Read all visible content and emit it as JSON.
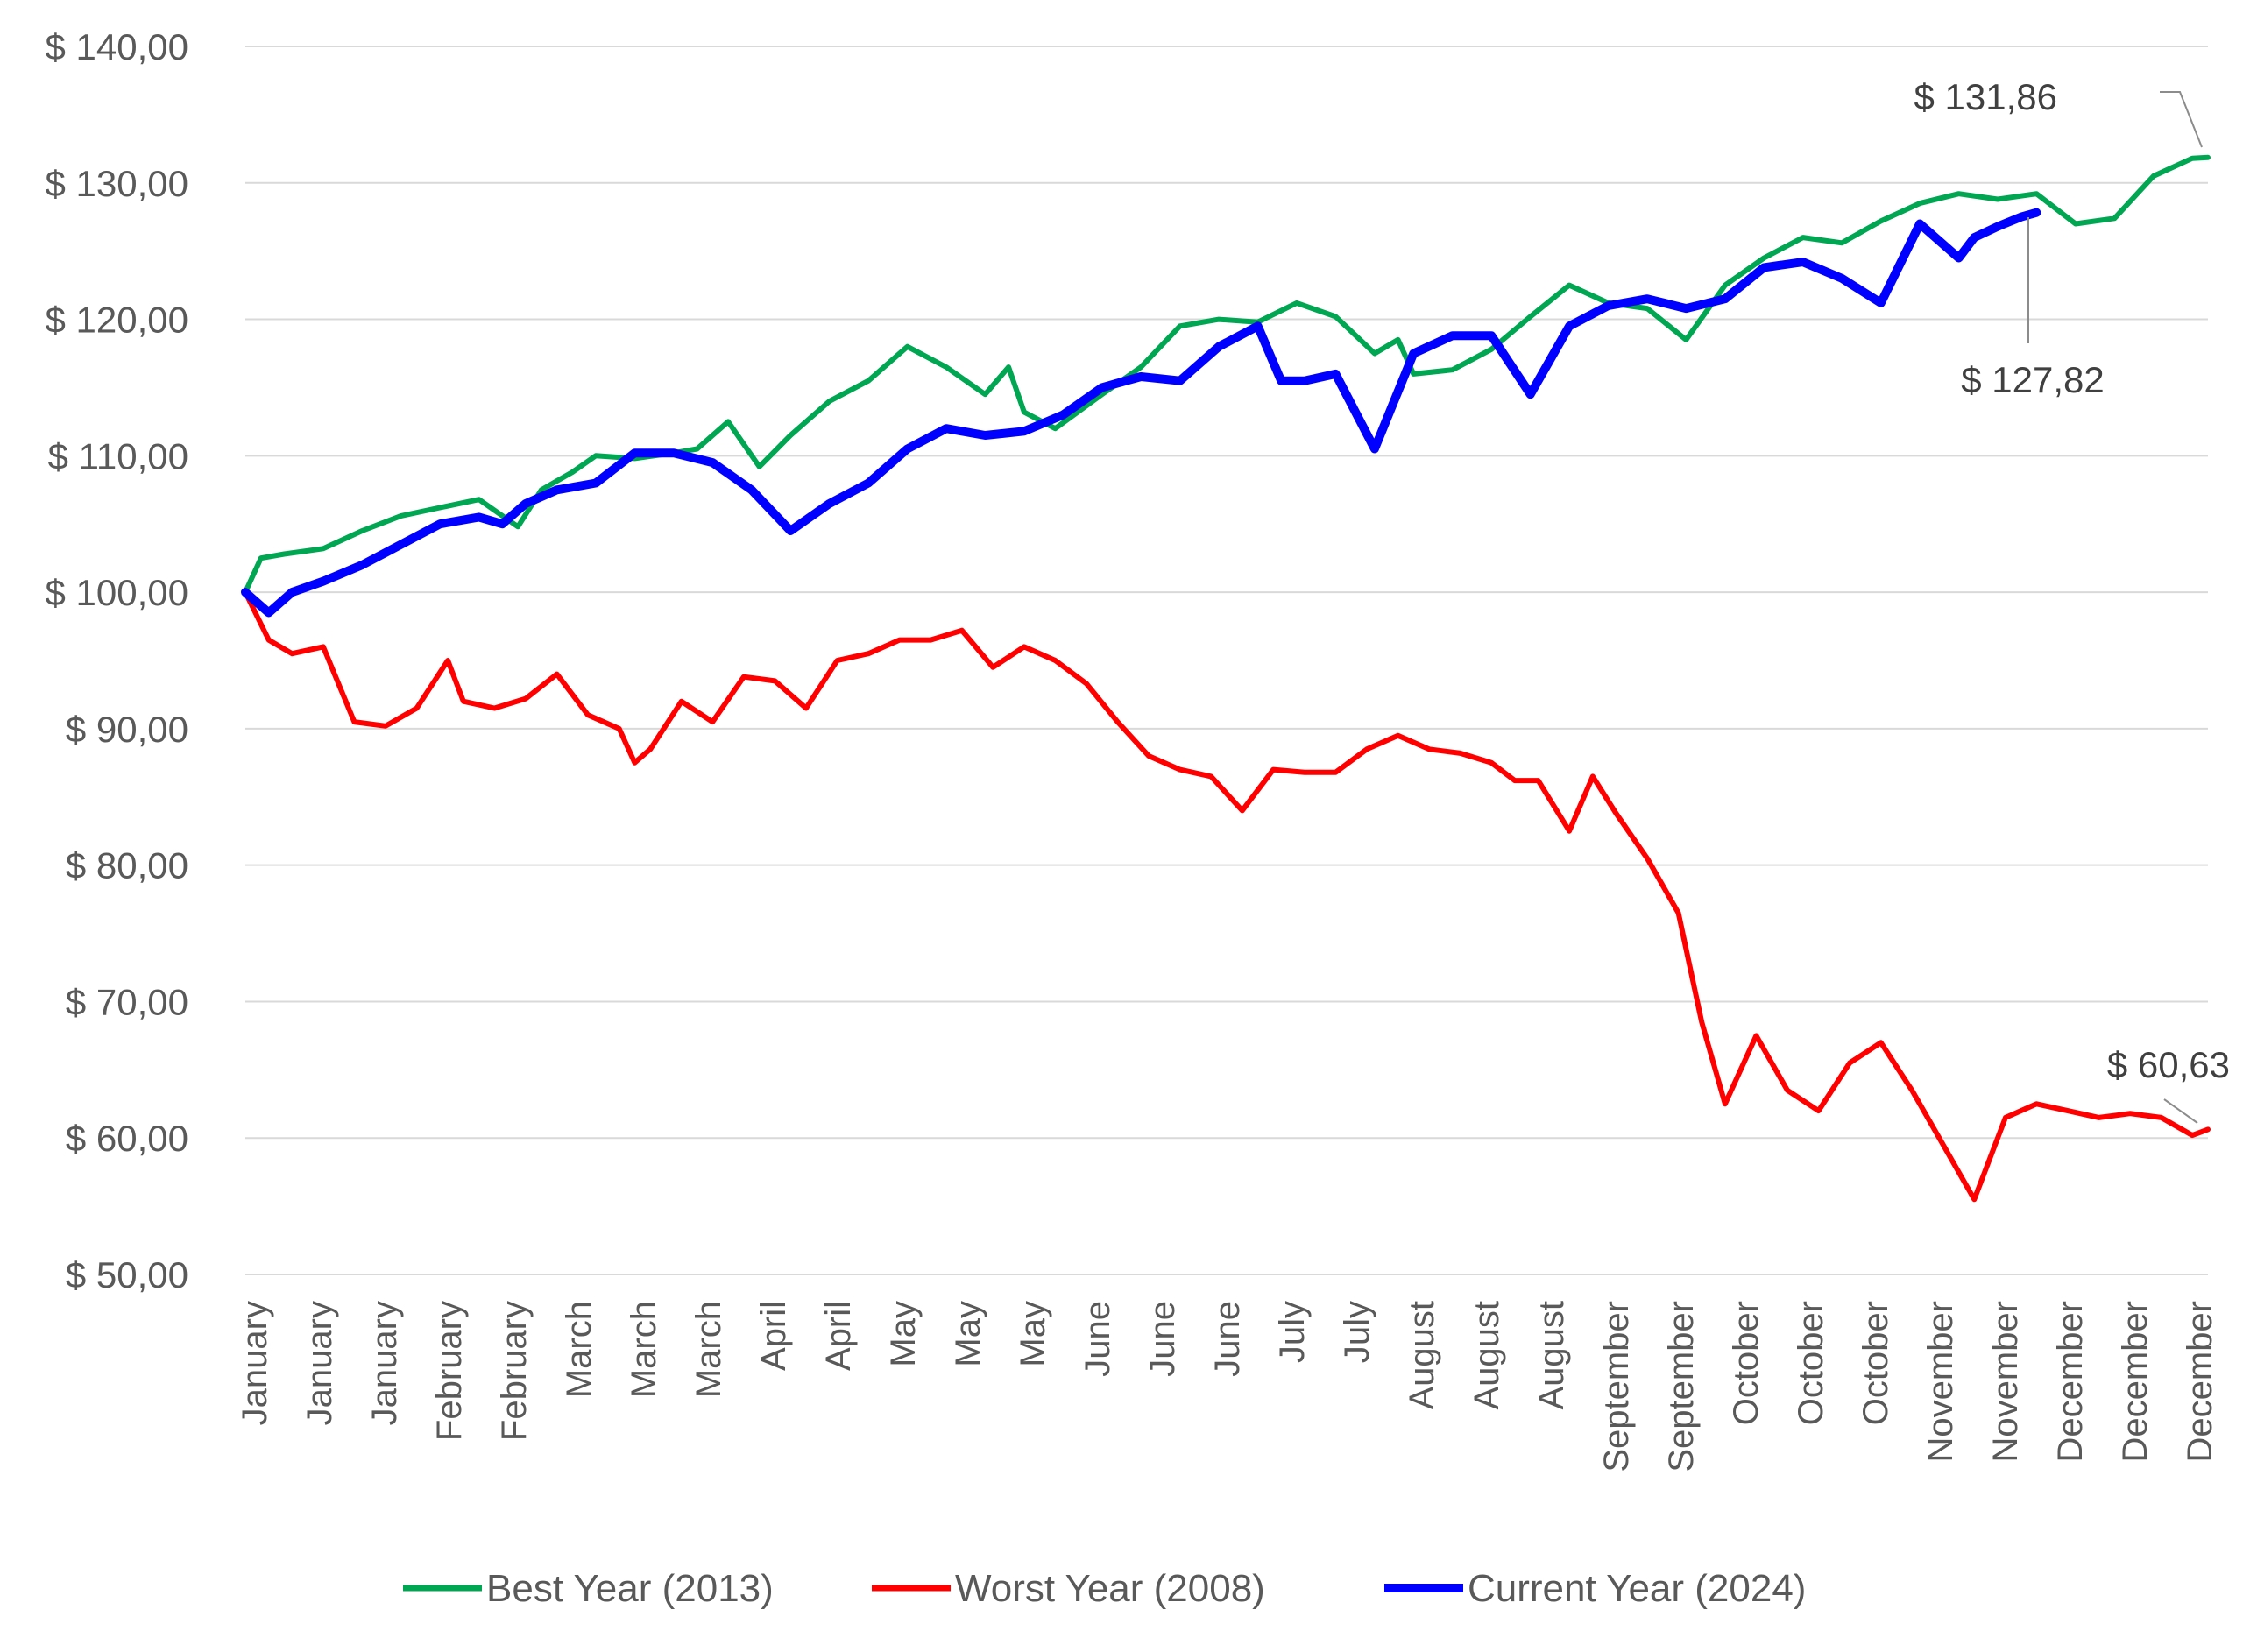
{
  "chart_data": {
    "type": "line",
    "title": "",
    "xlabel": "",
    "ylabel": "",
    "ylim": [
      50,
      140
    ],
    "yticks": [
      "$ 50,00",
      "$ 60,00",
      "$ 70,00",
      "$ 80,00",
      "$ 90,00",
      "$ 100,00",
      "$ 110,00",
      "$ 120,00",
      "$ 130,00",
      "$ 140,00"
    ],
    "ytick_values": [
      50,
      60,
      70,
      80,
      90,
      100,
      110,
      120,
      130,
      140
    ],
    "xticks": [
      "January",
      "January",
      "January",
      "February",
      "February",
      "March",
      "March",
      "March",
      "April",
      "April",
      "May",
      "May",
      "May",
      "June",
      "June",
      "June",
      "July",
      "July",
      "August",
      "August",
      "August",
      "September",
      "September",
      "October",
      "October",
      "October",
      "November",
      "November",
      "December",
      "December",
      "December"
    ],
    "grid": true,
    "legend_position": "bottom",
    "x_units": "trading day of year",
    "series": [
      {
        "name": "Best Year (2013)",
        "color": "#00A651",
        "x": [
          0,
          2,
          5,
          10,
          15,
          20,
          25,
          30,
          35,
          38,
          42,
          45,
          50,
          55,
          58,
          62,
          66,
          70,
          75,
          80,
          85,
          90,
          95,
          98,
          100,
          104,
          110,
          115,
          120,
          125,
          130,
          135,
          140,
          145,
          148,
          150,
          155,
          160,
          165,
          170,
          175,
          180,
          185,
          190,
          195,
          200,
          205,
          210,
          215,
          220,
          225,
          230,
          235,
          240,
          245,
          250,
          252
        ],
        "y": [
          100,
          102.5,
          102.8,
          103.2,
          104.5,
          105.6,
          106.2,
          106.8,
          104.8,
          107.5,
          108.8,
          110,
          109.8,
          110.2,
          110.5,
          112.5,
          109.2,
          111.5,
          114,
          115.5,
          118,
          116.5,
          114.5,
          116.5,
          113.2,
          112,
          114.5,
          116.5,
          119.5,
          120,
          119.8,
          121.2,
          120.2,
          117.5,
          118.5,
          116,
          116.3,
          117.8,
          120.2,
          122.5,
          121.2,
          120.8,
          118.5,
          122.5,
          124.5,
          126,
          125.6,
          127.2,
          128.5,
          129.2,
          128.8,
          129.2,
          127,
          127.4,
          130.5,
          131.8,
          131.86
        ]
      },
      {
        "name": "Worst Year (2008)",
        "color": "#FF0000",
        "x": [
          0,
          3,
          6,
          10,
          14,
          18,
          22,
          26,
          28,
          32,
          36,
          40,
          44,
          48,
          50,
          52,
          56,
          60,
          64,
          68,
          72,
          76,
          80,
          84,
          88,
          92,
          96,
          100,
          104,
          108,
          112,
          116,
          120,
          124,
          128,
          132,
          136,
          140,
          144,
          148,
          152,
          156,
          160,
          163,
          166,
          170,
          173,
          176,
          180,
          184,
          187,
          190,
          194,
          198,
          202,
          206,
          210,
          214,
          218,
          222,
          226,
          230,
          234,
          238,
          242,
          246,
          250,
          252
        ],
        "y": [
          100,
          96.5,
          95.5,
          96,
          90.5,
          90.2,
          91.5,
          95,
          92,
          91.5,
          92.2,
          94,
          91,
          90,
          87.5,
          88.5,
          92,
          90.5,
          93.8,
          93.5,
          91.5,
          95,
          95.5,
          96.5,
          96.5,
          97.2,
          94.5,
          96,
          95,
          93.3,
          90.5,
          88,
          87,
          86.5,
          84,
          87,
          86.8,
          86.8,
          88.5,
          89.5,
          88.5,
          88.2,
          87.5,
          86.2,
          86.2,
          82.5,
          86.5,
          83.8,
          80.5,
          76.5,
          68.5,
          62.5,
          67.5,
          63.5,
          62,
          65.5,
          67,
          63.5,
          59.5,
          55.5,
          61.5,
          62.5,
          62,
          61.5,
          61.8,
          61.5,
          60.2,
          60.63
        ]
      },
      {
        "name": "Current Year (2024)",
        "color": "#0000FF",
        "x": [
          0,
          3,
          6,
          10,
          15,
          20,
          25,
          30,
          33,
          36,
          40,
          45,
          50,
          55,
          60,
          65,
          70,
          75,
          80,
          85,
          90,
          95,
          100,
          105,
          110,
          115,
          120,
          125,
          130,
          133,
          136,
          140,
          145,
          150,
          155,
          160,
          165,
          170,
          175,
          180,
          185,
          190,
          195,
          200,
          205,
          210,
          215,
          220,
          222,
          225,
          228,
          230
        ],
        "y": [
          100,
          98.5,
          100,
          100.8,
          102,
          103.5,
          105,
          105.5,
          105,
          106.5,
          107.5,
          108,
          110.2,
          110.2,
          109.5,
          107.5,
          104.5,
          106.5,
          108,
          110.5,
          112,
          111.5,
          111.8,
          113,
          115,
          115.8,
          115.5,
          118,
          119.5,
          115.5,
          115.5,
          116,
          110.5,
          117.5,
          118.8,
          118.8,
          114.5,
          119.5,
          121,
          121.5,
          120.8,
          121.5,
          123.8,
          124.2,
          123,
          121.2,
          127,
          124.5,
          126,
          126.8,
          127.5,
          127.82
        ]
      }
    ],
    "annotations": [
      {
        "text": "$ 131,86",
        "series": "Best Year (2013)"
      },
      {
        "text": "$ 127,82",
        "series": "Current Year (2024)"
      },
      {
        "text": "$ 60,63",
        "series": "Worst Year (2008)"
      }
    ]
  }
}
